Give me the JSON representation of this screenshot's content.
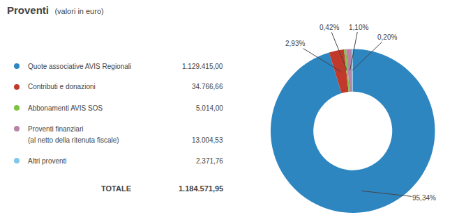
{
  "chart_data": {
    "type": "pie",
    "title": "Proventi",
    "subtitle": "(valori in euro)",
    "categories": [
      "Quote associative AVIS Regionali",
      "Contributi e donazioni",
      "Abbonamenti AVIS SOS",
      "Proventi finanziari\n(al netto della ritenuta fiscale)",
      "Altri proventi"
    ],
    "values": [
      95.34,
      2.93,
      0.42,
      1.1,
      0.2
    ],
    "value_labels": [
      "95,34%",
      "2,93%",
      "0,42%",
      "1,10%",
      "0,20%"
    ],
    "colors": [
      "#2E86C1",
      "#C0392B",
      "#7DC242",
      "#B784A7",
      "#7FC8E8"
    ],
    "amounts": [
      1129415.0,
      34766.66,
      5014.0,
      13004.53,
      2371.76
    ],
    "amount_labels": [
      "1.129.415,00",
      "34.766,66",
      "5.014,00",
      "13.004,53",
      "2.371,76"
    ],
    "total_label": "TOTALE",
    "total": 1184571.95,
    "total_value_label": "1.184.571,95",
    "data_labels": true
  }
}
